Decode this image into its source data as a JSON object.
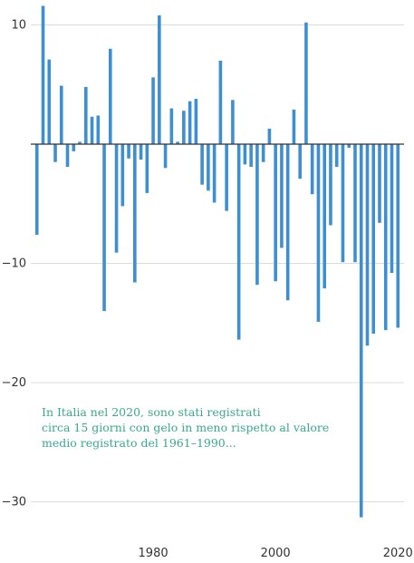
{
  "colors": {
    "bar": "#3d8fd1",
    "grid": "#dcdcdc",
    "axis": "#333333",
    "annotation": "#3aa88e"
  },
  "chart_data": {
    "type": "bar",
    "x": [
      1961,
      1962,
      1963,
      1964,
      1965,
      1966,
      1967,
      1968,
      1969,
      1970,
      1971,
      1972,
      1973,
      1974,
      1975,
      1976,
      1977,
      1978,
      1979,
      1980,
      1981,
      1982,
      1983,
      1984,
      1985,
      1986,
      1987,
      1988,
      1989,
      1990,
      1991,
      1992,
      1993,
      1994,
      1995,
      1996,
      1997,
      1998,
      1999,
      2000,
      2001,
      2002,
      2003,
      2004,
      2005,
      2006,
      2007,
      2008,
      2009,
      2010,
      2011,
      2012,
      2013,
      2014,
      2015,
      2016,
      2017,
      2018,
      2019,
      2020
    ],
    "values": [
      -7.6,
      11.6,
      7.1,
      -1.5,
      4.9,
      -1.9,
      -0.6,
      0.2,
      4.8,
      2.3,
      2.4,
      -14,
      8,
      -9.1,
      -5.2,
      -1.2,
      -11.6,
      -1.3,
      -4.1,
      5.6,
      10.8,
      -2,
      3,
      0.2,
      2.8,
      3.6,
      3.8,
      -3.4,
      -3.9,
      -4.9,
      7,
      -5.6,
      3.7,
      -16.4,
      -1.7,
      -1.9,
      -11.8,
      -1.5,
      1.3,
      -11.5,
      -8.7,
      -13.1,
      2.9,
      -2.9,
      10.2,
      -4.2,
      -14.9,
      -12.1,
      -6.8,
      -1.9,
      -9.9,
      -0.3,
      -9.9,
      -31.3,
      -16.9,
      -15.9,
      -6.6,
      -15.6,
      -10.8,
      -15.4
    ],
    "xlim": [
      1960,
      2021
    ],
    "ylim": [
      -32,
      11.8
    ],
    "yticks": [
      10,
      -10,
      -20,
      -30
    ],
    "ytick_labels": [
      "10",
      "−10",
      "−20",
      "−30"
    ],
    "xticks": [
      1980,
      2000,
      2020
    ],
    "xtick_labels": [
      "1980",
      "2000",
      "2020"
    ],
    "grid": true,
    "title": "",
    "xlabel": "",
    "ylabel": "",
    "annotation": {
      "lines": [
        "In Italia nel 2020, sono stati registrati",
        "circa 15 giorni con gelo in meno rispetto al valore",
        "medio registrato del 1961–1990..."
      ]
    }
  }
}
